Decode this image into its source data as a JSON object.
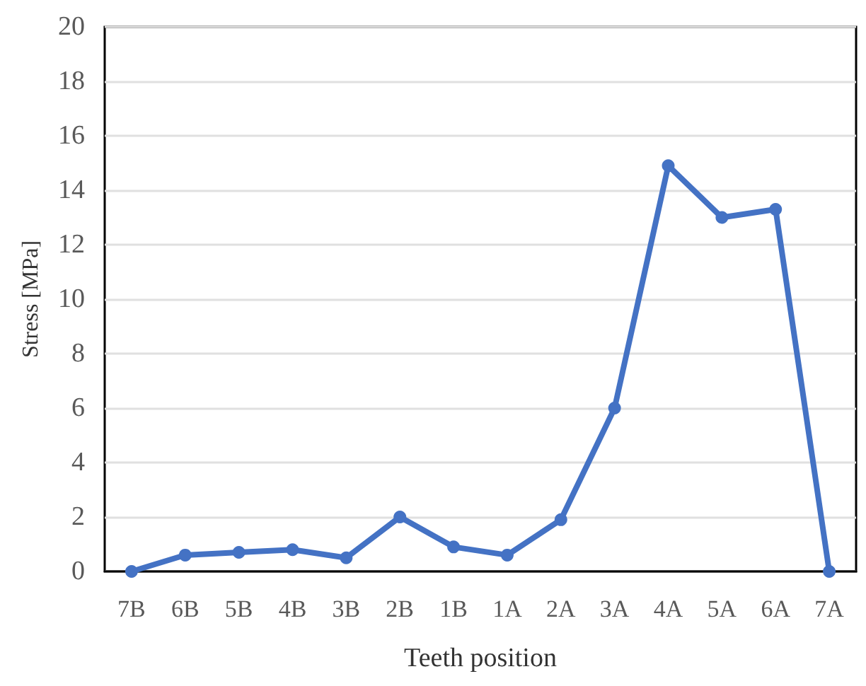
{
  "chart_data": {
    "type": "line",
    "xlabel": "Teeth position",
    "ylabel": "Stress [MPa]",
    "categories": [
      "7B",
      "6B",
      "5B",
      "4B",
      "3B",
      "2B",
      "1B",
      "1A",
      "2A",
      "3A",
      "4A",
      "5A",
      "6A",
      "7A"
    ],
    "series": [
      {
        "color": "#4472c4",
        "values": [
          0,
          0.6,
          0.7,
          0.8,
          0.5,
          2.0,
          0.9,
          0.6,
          1.9,
          6.0,
          14.9,
          13.0,
          13.3,
          0
        ]
      }
    ],
    "ylim": [
      0,
      20
    ],
    "yticks": [
      0,
      2,
      4,
      6,
      8,
      10,
      12,
      14,
      16,
      18,
      20
    ],
    "grid": "y",
    "marker": "circle",
    "line_style": "solid"
  }
}
